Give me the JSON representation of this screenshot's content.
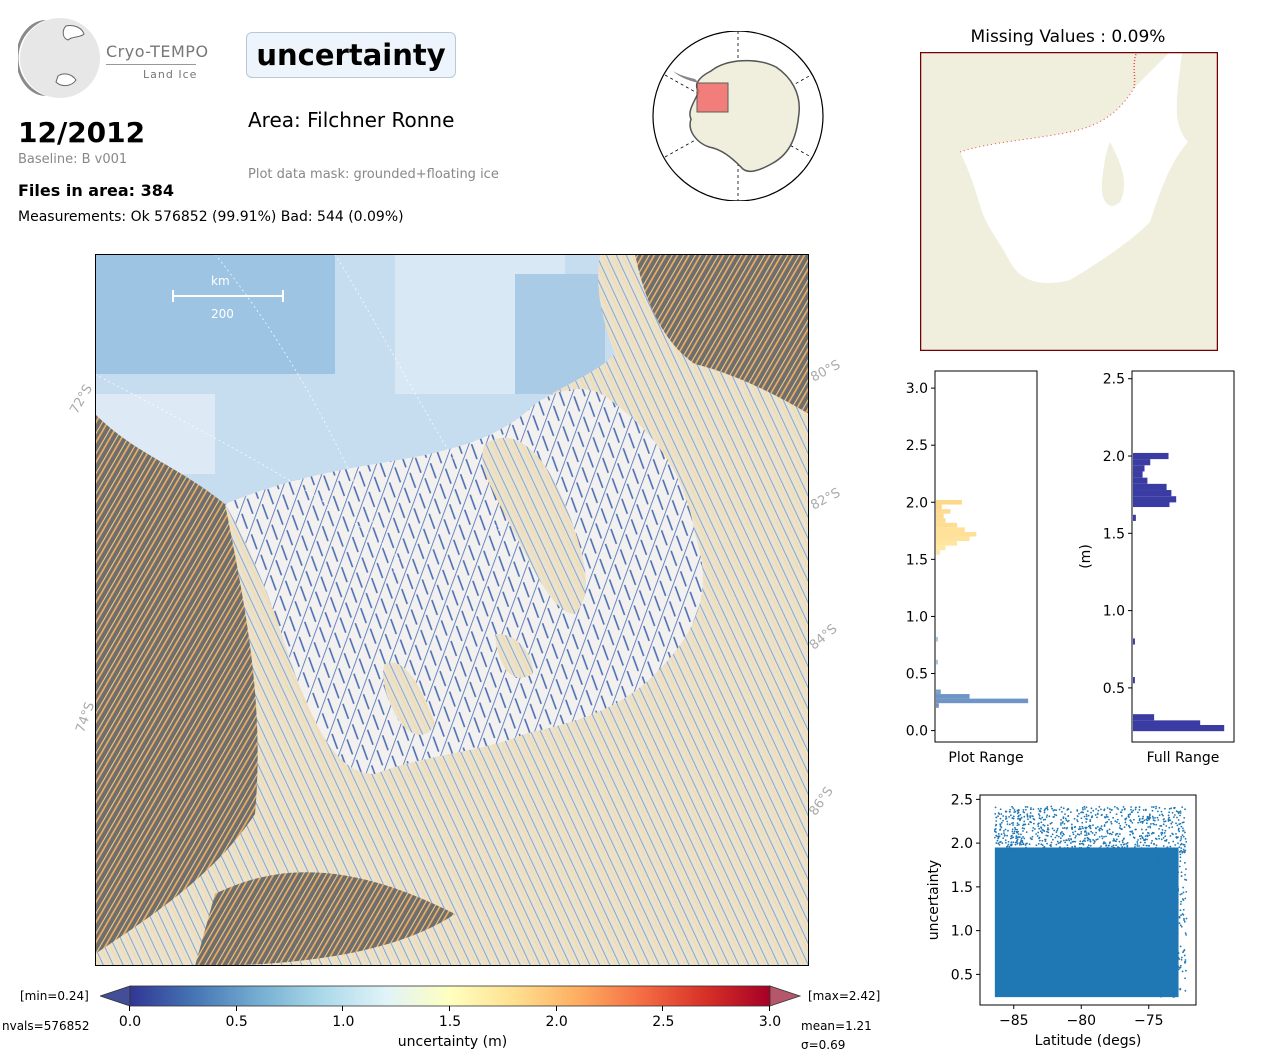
{
  "header": {
    "logo_name": "Cryo-TEMPO",
    "logo_sub": "Land Ice",
    "date": "12/2012",
    "baseline": "Baseline: B v001",
    "files": "Files in area: 384",
    "measurements": "Measurements: Ok 576852 (99.91%) Bad: 544 (0.09%)",
    "title": "uncertainty",
    "area": "Area: Filchner Ronne",
    "mask": "Plot data mask: grounded+floating ice"
  },
  "main_map": {
    "scale_label": "km",
    "scale_value": "200",
    "lat_labels": [
      "72°S",
      "74°S",
      "80°S",
      "82°S",
      "84°S",
      "86°S"
    ]
  },
  "colorbar": {
    "min_label": "[min=0.24]",
    "max_label": "[max=2.42]",
    "nvals": "nvals=576852",
    "mean": "mean=1.21",
    "sigma": "σ=0.69",
    "ticks": [
      "0.0",
      "0.5",
      "1.0",
      "1.5",
      "2.0",
      "2.5",
      "3.0"
    ],
    "label": "uncertainty (m)",
    "colors": [
      "#313695",
      "#4575b4",
      "#74add1",
      "#abd9e9",
      "#e0f3f8",
      "#ffffbf",
      "#fee090",
      "#fdae61",
      "#f46d43",
      "#d73027",
      "#a50026"
    ]
  },
  "missing_panel": {
    "title": "Missing Values : 0.09%"
  },
  "chart_data": [
    {
      "type": "bar",
      "orientation": "horizontal",
      "name": "plot-range-histogram",
      "xlabel": "Plot Range",
      "ylim": [
        -0.1,
        3.15
      ],
      "yticks": [
        "0.0",
        "0.5",
        "1.0",
        "1.5",
        "2.0",
        "2.5",
        "3.0"
      ],
      "bins": [
        {
          "y": 0.22,
          "count": 0.03,
          "color": "#6f94c6"
        },
        {
          "y": 0.26,
          "count": 0.96,
          "color": "#6f94c6"
        },
        {
          "y": 0.3,
          "count": 0.35,
          "color": "#6f94c6"
        },
        {
          "y": 0.34,
          "count": 0.05,
          "color": "#7aa2cc"
        },
        {
          "y": 0.6,
          "count": 0.02,
          "color": "#9ec8e0"
        },
        {
          "y": 0.8,
          "count": 0.02,
          "color": "#9ec8e0"
        },
        {
          "y": 1.56,
          "count": 0.04,
          "color": "#ffe8a4"
        },
        {
          "y": 1.6,
          "count": 0.1,
          "color": "#ffe8a4"
        },
        {
          "y": 1.64,
          "count": 0.22,
          "color": "#ffe5a0"
        },
        {
          "y": 1.68,
          "count": 0.35,
          "color": "#ffe39c"
        },
        {
          "y": 1.72,
          "count": 0.42,
          "color": "#ffe098"
        },
        {
          "y": 1.76,
          "count": 0.3,
          "color": "#ffe098"
        },
        {
          "y": 1.8,
          "count": 0.22,
          "color": "#fedd92"
        },
        {
          "y": 1.84,
          "count": 0.1,
          "color": "#fedd92"
        },
        {
          "y": 1.88,
          "count": 0.08,
          "color": "#fedb8e"
        },
        {
          "y": 1.92,
          "count": 0.15,
          "color": "#fedb8e"
        },
        {
          "y": 1.96,
          "count": 0.06,
          "color": "#fdd889"
        },
        {
          "y": 2.0,
          "count": 0.27,
          "color": "#fdd889"
        }
      ]
    },
    {
      "type": "bar",
      "orientation": "horizontal",
      "name": "full-range-histogram",
      "xlabel": "Full Range",
      "ylabel": "(m)",
      "ylim": [
        0.15,
        2.55
      ],
      "yticks": [
        "0.5",
        "1.0",
        "1.5",
        "2.0",
        "2.5"
      ],
      "bar_color": "#3b3ca3",
      "bins": [
        {
          "y": 0.24,
          "count": 0.95
        },
        {
          "y": 0.27,
          "count": 0.7
        },
        {
          "y": 0.31,
          "count": 0.22
        },
        {
          "y": 0.55,
          "count": 0.02
        },
        {
          "y": 0.8,
          "count": 0.02
        },
        {
          "y": 1.6,
          "count": 0.03
        },
        {
          "y": 1.69,
          "count": 0.38
        },
        {
          "y": 1.72,
          "count": 0.45
        },
        {
          "y": 1.76,
          "count": 0.4
        },
        {
          "y": 1.8,
          "count": 0.35
        },
        {
          "y": 1.84,
          "count": 0.15
        },
        {
          "y": 1.88,
          "count": 0.1
        },
        {
          "y": 1.92,
          "count": 0.12
        },
        {
          "y": 1.96,
          "count": 0.18
        },
        {
          "y": 2.0,
          "count": 0.37
        }
      ]
    },
    {
      "type": "scatter",
      "name": "uncertainty-vs-latitude",
      "xlabel": "Latitude (degs)",
      "ylabel": "uncertainty",
      "xlim": [
        -87.5,
        -71.5
      ],
      "ylim": [
        0.15,
        2.55
      ],
      "xticks": [
        "−85",
        "−80",
        "−75"
      ],
      "yticks": [
        "0.5",
        "1.0",
        "1.5",
        "2.0",
        "2.5"
      ],
      "point_color": "#1f77b4",
      "dense_region": {
        "x": [
          -86.4,
          -72.2
        ],
        "y": [
          0.24,
          2.42
        ]
      }
    }
  ]
}
